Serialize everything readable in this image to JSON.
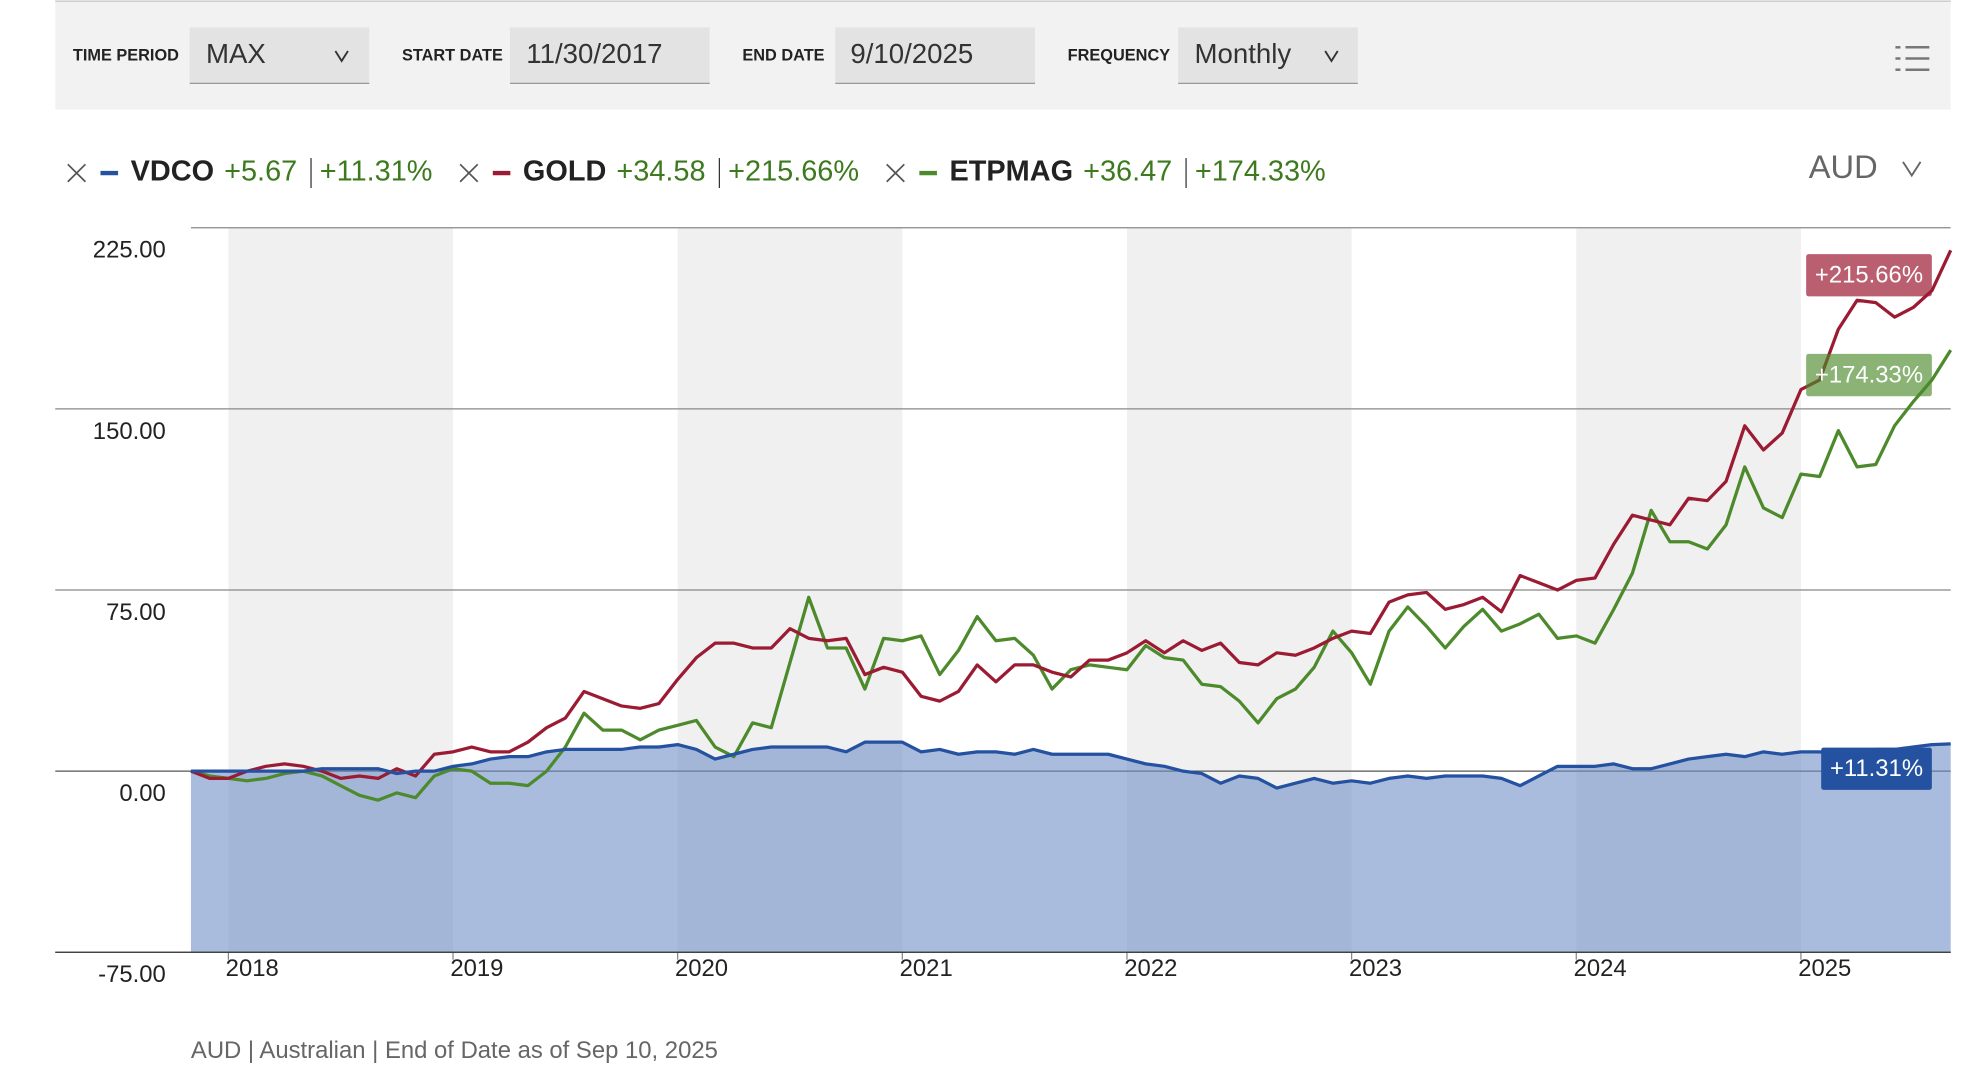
{
  "toolbar": {
    "time_period_label": "TIME PERIOD",
    "time_period": "MAX",
    "start_date_label": "START DATE",
    "start_date": "11/30/2017",
    "end_date_label": "END DATE",
    "end_date": "9/10/2025",
    "frequency_label": "FREQUENCY",
    "frequency": "Monthly"
  },
  "currency": "AUD",
  "chart_data": {
    "type": "line",
    "x": [
      "2017-11",
      "2017-12",
      "2018-01",
      "2018-02",
      "2018-03",
      "2018-04",
      "2018-05",
      "2018-06",
      "2018-07",
      "2018-08",
      "2018-09",
      "2018-10",
      "2018-11",
      "2018-12",
      "2019-01",
      "2019-02",
      "2019-03",
      "2019-04",
      "2019-05",
      "2019-06",
      "2019-07",
      "2019-08",
      "2019-09",
      "2019-10",
      "2019-11",
      "2019-12",
      "2020-01",
      "2020-02",
      "2020-03",
      "2020-04",
      "2020-05",
      "2020-06",
      "2020-07",
      "2020-08",
      "2020-09",
      "2020-10",
      "2020-11",
      "2020-12",
      "2021-01",
      "2021-02",
      "2021-03",
      "2021-04",
      "2021-05",
      "2021-06",
      "2021-07",
      "2021-08",
      "2021-09",
      "2021-10",
      "2021-11",
      "2021-12",
      "2022-01",
      "2022-02",
      "2022-03",
      "2022-04",
      "2022-05",
      "2022-06",
      "2022-07",
      "2022-08",
      "2022-09",
      "2022-10",
      "2022-11",
      "2022-12",
      "2023-01",
      "2023-02",
      "2023-03",
      "2023-04",
      "2023-05",
      "2023-06",
      "2023-07",
      "2023-08",
      "2023-09",
      "2023-10",
      "2023-11",
      "2023-12",
      "2024-01",
      "2024-02",
      "2024-03",
      "2024-04",
      "2024-05",
      "2024-06",
      "2024-07",
      "2024-08",
      "2024-09",
      "2024-10",
      "2024-11",
      "2024-12",
      "2025-01",
      "2025-02",
      "2025-03",
      "2025-04",
      "2025-05",
      "2025-06",
      "2025-07",
      "2025-08",
      "2025-09"
    ],
    "xlim": [
      "2017-11",
      "2025-09"
    ],
    "xticks": [
      {
        "value": "2018-01",
        "label": "2018"
      },
      {
        "value": "2019-01",
        "label": "2019"
      },
      {
        "value": "2020-01",
        "label": "2020"
      },
      {
        "value": "2021-01",
        "label": "2021"
      },
      {
        "value": "2022-01",
        "label": "2022"
      },
      {
        "value": "2023-01",
        "label": "2023"
      },
      {
        "value": "2024-01",
        "label": "2024"
      },
      {
        "value": "2025-01",
        "label": "2025"
      }
    ],
    "ylim": [
      -75,
      225
    ],
    "yticks": [
      {
        "value": -75,
        "label": "-75.00"
      },
      {
        "value": 0,
        "label": "0.00"
      },
      {
        "value": 75,
        "label": "75.00"
      },
      {
        "value": 150,
        "label": "150.00"
      },
      {
        "value": 225,
        "label": "225.00"
      }
    ],
    "grid": true,
    "series": [
      {
        "name": "VDCO",
        "color": "#2451a0",
        "area": true,
        "change": "+5.67",
        "end_label": "+11.31%",
        "values": [
          0,
          0,
          0,
          0,
          0,
          0,
          0,
          1,
          1,
          1,
          1,
          -1,
          0,
          0,
          2,
          3,
          5,
          6,
          6,
          8,
          9,
          9,
          9,
          9,
          10,
          10,
          11,
          9,
          5,
          7,
          9,
          10,
          10,
          10,
          10,
          8,
          12,
          12,
          12,
          8,
          9,
          7,
          8,
          8,
          7,
          9,
          7,
          7,
          7,
          7,
          5,
          3,
          2,
          0,
          -1,
          -5,
          -2,
          -3,
          -7,
          -5,
          -3,
          -5,
          -4,
          -5,
          -3,
          -2,
          -3,
          -2,
          -2,
          -2,
          -3,
          -6,
          -2,
          2,
          2,
          2,
          3,
          1,
          1,
          3,
          5,
          6,
          7,
          6,
          8,
          7,
          8,
          8,
          7,
          8,
          9,
          9,
          10,
          11,
          11.31
        ]
      },
      {
        "name": "GOLD",
        "color": "#9b1b33",
        "area": false,
        "change": "+34.58",
        "end_label": "+215.66%",
        "values": [
          0,
          -3,
          -3,
          0,
          2,
          3,
          2,
          0,
          -3,
          -2,
          -3,
          1,
          -2,
          7,
          8,
          10,
          8,
          8,
          12,
          18,
          22,
          33,
          30,
          27,
          26,
          28,
          38,
          47,
          53,
          53,
          51,
          51,
          59,
          55,
          54,
          55,
          40,
          43,
          41,
          31,
          29,
          33,
          44,
          37,
          44,
          44,
          41,
          39,
          46,
          46,
          49,
          54,
          49,
          54,
          50,
          53,
          45,
          44,
          49,
          48,
          51,
          55,
          58,
          57,
          70,
          73,
          74,
          67,
          69,
          72,
          66,
          81,
          78,
          75,
          79,
          80,
          94,
          106,
          104,
          102,
          113,
          112,
          120,
          143,
          133,
          140,
          158,
          162,
          183,
          195,
          194,
          188,
          192,
          199,
          215.66
        ]
      },
      {
        "name": "ETPMAG",
        "color": "#4c8a2b",
        "area": false,
        "change": "+36.47",
        "end_label": "+174.33%",
        "values": [
          0,
          -2,
          -3,
          -4,
          -3,
          -1,
          0,
          -2,
          -6,
          -10,
          -12,
          -9,
          -11,
          -2,
          1,
          0,
          -5,
          -5,
          -6,
          0,
          10,
          24,
          17,
          17,
          13,
          17,
          19,
          21,
          10,
          6,
          20,
          18,
          45,
          72,
          51,
          51,
          34,
          55,
          54,
          56,
          40,
          50,
          64,
          54,
          55,
          48,
          34,
          42,
          44,
          43,
          42,
          52,
          47,
          46,
          36,
          35,
          29,
          20,
          30,
          34,
          43,
          58,
          49,
          36,
          58,
          68,
          60,
          51,
          60,
          67,
          58,
          61,
          65,
          55,
          56,
          53,
          67,
          82,
          108,
          95,
          95,
          92,
          102,
          126,
          109,
          105,
          123,
          122,
          141,
          126,
          127,
          143,
          153,
          162,
          174.33
        ]
      }
    ],
    "footnote": "AUD | Australian | End of Date as of Sep 10, 2025"
  }
}
